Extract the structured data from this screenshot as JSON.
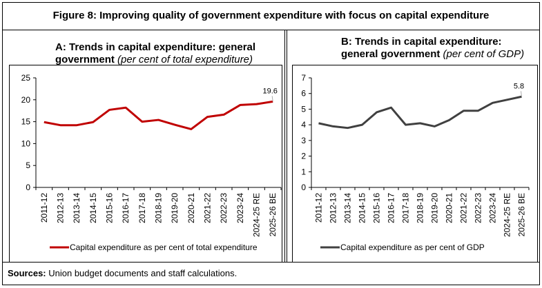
{
  "figure_title": "Figure 8: Improving quality of government expenditure with focus on capital expenditure",
  "sources_label": "Sources:",
  "sources_text": " Union budget documents and staff calculations.",
  "chart_data": [
    {
      "type": "line",
      "title_bold": "A: Trends in capital expenditure: general government",
      "title_italic": "(per cent of total expenditure)",
      "categories": [
        "2011-12",
        "2012-13",
        "2013-14",
        "2014-15",
        "2015-16",
        "2016-17",
        "2017-18",
        "2018-19",
        "2019-20",
        "2020-21",
        "2021-22",
        "2022-23",
        "2023-24",
        "2024-25 RE",
        "2025-26 BE"
      ],
      "series": [
        {
          "name": "Capital expenditure as per cent of total expenditure",
          "color": "#c00000",
          "values": [
            14.9,
            14.2,
            14.2,
            14.9,
            17.7,
            18.2,
            15.0,
            15.4,
            14.3,
            13.3,
            16.1,
            16.6,
            18.8,
            19.0,
            19.6
          ]
        }
      ],
      "data_label": "19.6",
      "ylim": [
        0,
        25
      ],
      "yticks": [
        0,
        5,
        10,
        15,
        20,
        25
      ],
      "grid": false,
      "legend": "bottom"
    },
    {
      "type": "line",
      "title_bold": "B: Trends in capital expenditure: general government",
      "title_italic": "(per cent of GDP)",
      "categories": [
        "2011-12",
        "2012-13",
        "2013-14",
        "2014-15",
        "2015-16",
        "2016-17",
        "2017-18",
        "2018-19",
        "2019-20",
        "2020-21",
        "2021-22",
        "2022-23",
        "2023-24",
        "2024-25 RE",
        "2025-26 BE"
      ],
      "series": [
        {
          "name": "Capital expenditure as per cent of GDP",
          "color": "#404040",
          "values": [
            4.1,
            3.9,
            3.8,
            4.0,
            4.8,
            5.1,
            4.0,
            4.1,
            3.9,
            4.3,
            4.9,
            4.9,
            5.4,
            5.6,
            5.8
          ]
        }
      ],
      "data_label": "5.8",
      "ylim": [
        0,
        7
      ],
      "yticks": [
        0,
        1,
        2,
        3,
        4,
        5,
        6,
        7
      ],
      "grid": false,
      "legend": "bottom"
    }
  ]
}
